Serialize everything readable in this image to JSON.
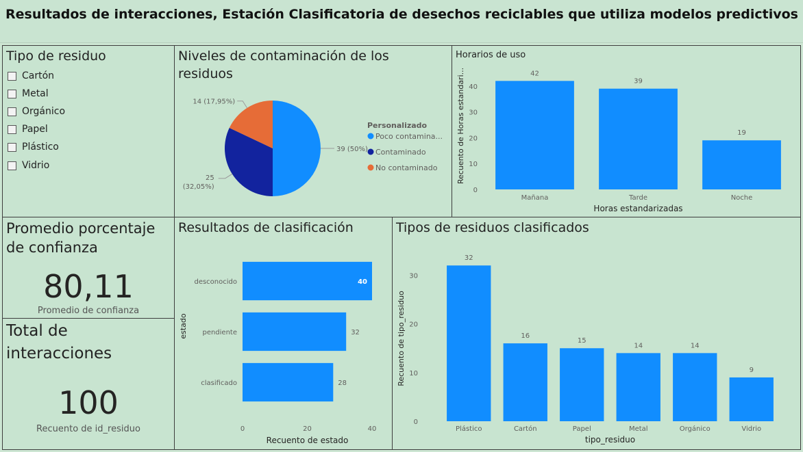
{
  "header": {
    "title": "Resultados de interacciones, Estación Clasificatoria de desechos reciclables que utiliza modelos predictivos"
  },
  "slicer": {
    "title": "Tipo de residuo",
    "items": [
      "Cartón",
      "Metal",
      "Orgánico",
      "Papel",
      "Plástico",
      "Vidrio"
    ]
  },
  "kpi_confidence": {
    "title": "Promedio porcentaje de confianza",
    "value": "80,11",
    "label": "Promedio de confianza"
  },
  "kpi_total": {
    "title": "Total de interacciones",
    "value": "100",
    "label": "Recuento de id_residuo"
  },
  "colors": {
    "bar": "#118dff",
    "poco": "#118dff",
    "contaminado": "#12239e",
    "no_contaminado": "#e66c37"
  },
  "chart_data": [
    {
      "id": "pie",
      "type": "pie",
      "title": "Niveles de contaminación de los residuos",
      "legend_title": "Personalizado",
      "legend_placement": "right",
      "slices": [
        {
          "name": "Poco contamina...",
          "value": 39,
          "label": "39 (50%)"
        },
        {
          "name": "Contaminado",
          "value": 25,
          "label_line1": "25",
          "label_line2": "(32,05%)"
        },
        {
          "name": "No contaminado",
          "value": 14,
          "label": "14 (17,95%)"
        }
      ]
    },
    {
      "id": "horarios",
      "type": "bar",
      "title": "Horarios de uso",
      "xlabel": "Horas estandarizadas",
      "ylabel": "Recuento de Horas estandari...",
      "categories": [
        "Mañana",
        "Tarde",
        "Noche"
      ],
      "values": [
        42,
        39,
        19
      ],
      "yticks": [
        0,
        10,
        20,
        30,
        40
      ],
      "ylim": [
        0,
        45
      ]
    },
    {
      "id": "resultados",
      "type": "bar",
      "orientation": "horizontal",
      "title": "Resultados de clasificación",
      "xlabel": "Recuento de estado",
      "ylabel": "estado",
      "categories": [
        "desconocido",
        "pendiente",
        "clasificado"
      ],
      "values": [
        40,
        32,
        28
      ],
      "xticks": [
        0,
        20,
        40
      ],
      "xlim": [
        0,
        40
      ]
    },
    {
      "id": "tipos",
      "type": "bar",
      "title": "Tipos de residuos clasificados",
      "xlabel": "tipo_residuo",
      "ylabel": "Recuento de tipo_residuo",
      "categories": [
        "Plástico",
        "Cartón",
        "Papel",
        "Metal",
        "Orgánico",
        "Vidrio"
      ],
      "values": [
        32,
        16,
        15,
        14,
        14,
        9
      ],
      "yticks": [
        0,
        10,
        20,
        30
      ],
      "ylim": [
        0,
        34
      ]
    }
  ]
}
